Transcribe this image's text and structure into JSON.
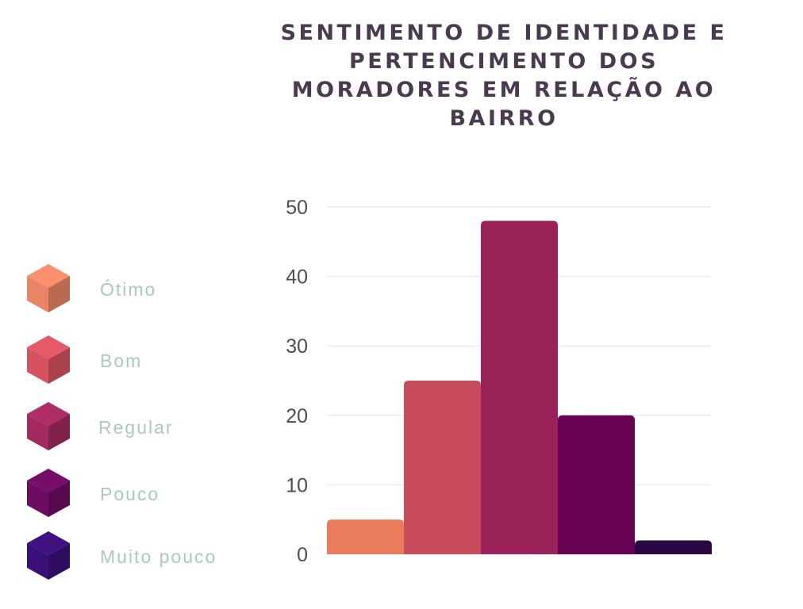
{
  "chart_data": {
    "type": "bar",
    "title": "SENTIMENTO DE IDENTIDADE E PERTENCIMENTO DOS MORADORES EM RELAÇÃO AO BAIRRO",
    "categories": [
      "Ótimo",
      "Bom",
      "Regular",
      "Pouco",
      "Muito pouco"
    ],
    "values": [
      5,
      25,
      48,
      20,
      2
    ],
    "colors": [
      "#ea7c5b",
      "#c84c5d",
      "#9b2159",
      "#680353",
      "#2a0845"
    ],
    "legend_colors": [
      "#e98465",
      "#d5535f",
      "#a22a5f",
      "#6d0c60",
      "#3a1078"
    ],
    "yticks": [
      0,
      10,
      20,
      30,
      40,
      50
    ],
    "ylim": [
      0,
      50
    ],
    "xlabel": "",
    "ylabel": "",
    "grid": true,
    "legend_position": "left"
  }
}
